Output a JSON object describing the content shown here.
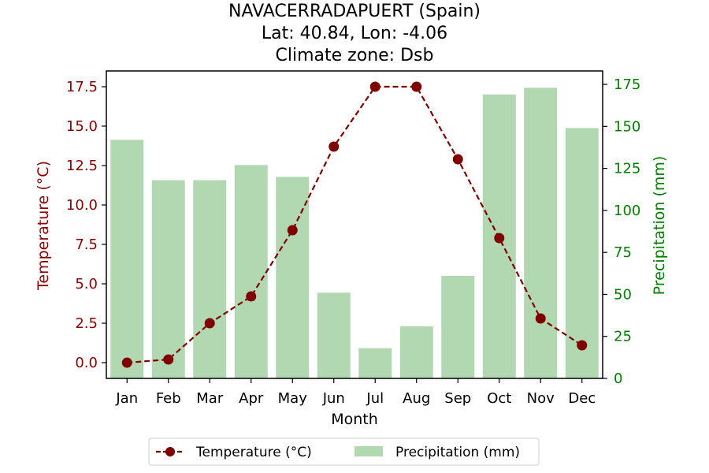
{
  "chart_data": {
    "type": "bar+line",
    "title": [
      "NAVACERRADAPUERT (Spain)",
      "Lat: 40.84, Lon: -4.06",
      "Climate zone: Dsb"
    ],
    "xlabel": "Month",
    "categories": [
      "Jan",
      "Feb",
      "Mar",
      "Apr",
      "May",
      "Jun",
      "Jul",
      "Aug",
      "Sep",
      "Oct",
      "Nov",
      "Dec"
    ],
    "left_axis": {
      "label": "Temperature (°C)",
      "ylim": [
        -1.0,
        18.5
      ],
      "ticks": [
        0.0,
        2.5,
        5.0,
        7.5,
        10.0,
        12.5,
        15.0,
        17.5
      ],
      "tick_labels": [
        "0.0",
        "2.5",
        "5.0",
        "7.5",
        "10.0",
        "12.5",
        "15.0",
        "17.5"
      ],
      "color": "#8b0000"
    },
    "right_axis": {
      "label": "Precipitation (mm)",
      "ylim": [
        0,
        183
      ],
      "ticks": [
        0,
        25,
        50,
        75,
        100,
        125,
        150,
        175
      ],
      "tick_labels": [
        "0",
        "25",
        "50",
        "75",
        "100",
        "125",
        "150",
        "175"
      ],
      "color": "#008000"
    },
    "series": [
      {
        "name": "Temperature (°C)",
        "kind": "line",
        "axis": "left",
        "color": "#7f0000",
        "values": [
          0.0,
          0.2,
          2.5,
          4.2,
          8.4,
          13.7,
          17.5,
          17.5,
          12.9,
          7.9,
          2.8,
          1.1
        ]
      },
      {
        "name": "Precipitation (mm)",
        "kind": "bar",
        "axis": "right",
        "color": "#b2d8b2",
        "values": [
          142,
          118,
          118,
          127,
          120,
          51,
          18,
          31,
          61,
          169,
          173,
          149
        ]
      }
    ],
    "legend": {
      "placement": "bottom-center",
      "entries": [
        "Temperature (°C)",
        "Precipitation (mm)"
      ]
    },
    "grid": false
  }
}
